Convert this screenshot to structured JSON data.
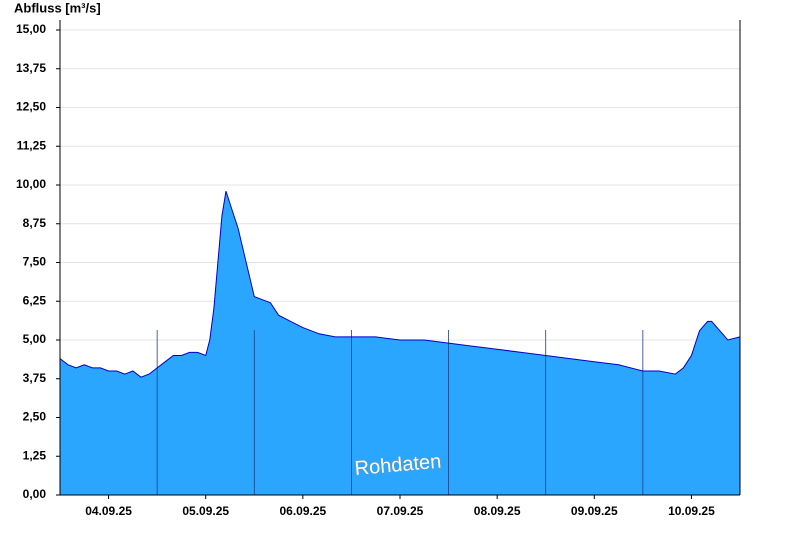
{
  "chart_data": {
    "type": "area",
    "y_label": "Abfluss [m³/s]",
    "annotation": "Rohdaten",
    "x": [
      0,
      2,
      4,
      6,
      8,
      10,
      12,
      14,
      16,
      18,
      20,
      22,
      24,
      26,
      28,
      30,
      32,
      34,
      36,
      37,
      38,
      39,
      40,
      41,
      42,
      43,
      44,
      46,
      48,
      50,
      52,
      54,
      57,
      60,
      64,
      68,
      72,
      78,
      84,
      90,
      96,
      102,
      108,
      114,
      120,
      126,
      132,
      138,
      144,
      148,
      152,
      154,
      156,
      158,
      160,
      161,
      163,
      165,
      168
    ],
    "values": [
      4.4,
      4.2,
      4.1,
      4.2,
      4.1,
      4.1,
      4.0,
      4.0,
      3.9,
      4.0,
      3.8,
      3.9,
      4.1,
      4.3,
      4.5,
      4.5,
      4.6,
      4.6,
      4.5,
      5.0,
      6.0,
      7.5,
      9.0,
      9.8,
      9.4,
      9.0,
      8.6,
      7.5,
      6.4,
      6.3,
      6.2,
      5.8,
      5.6,
      5.4,
      5.2,
      5.1,
      5.1,
      5.1,
      5.0,
      5.0,
      4.9,
      4.8,
      4.7,
      4.6,
      4.5,
      4.4,
      4.3,
      4.2,
      4.0,
      4.0,
      3.9,
      4.1,
      4.5,
      5.3,
      5.6,
      5.6,
      5.3,
      5.0,
      5.1
    ],
    "color": "#2ba6ff",
    "line_color": "#0000c8",
    "xlim": [
      0,
      168
    ],
    "xticks": [
      {
        "value": 12,
        "label": "04.09.25"
      },
      {
        "value": 36,
        "label": "05.09.25"
      },
      {
        "value": 60,
        "label": "06.09.25"
      },
      {
        "value": 84,
        "label": "07.09.25"
      },
      {
        "value": 108,
        "label": "08.09.25"
      },
      {
        "value": 132,
        "label": "09.09.25"
      },
      {
        "value": 156,
        "label": "10.09.25"
      }
    ],
    "ylim": [
      0,
      15
    ],
    "yticks": [
      {
        "value": 0,
        "label": "0,00"
      },
      {
        "value": 1.25,
        "label": "1,25"
      },
      {
        "value": 2.5,
        "label": "2,50"
      },
      {
        "value": 3.75,
        "label": "3,75"
      },
      {
        "value": 5,
        "label": "5,00"
      },
      {
        "value": 6.25,
        "label": "6,25"
      },
      {
        "value": 7.5,
        "label": "7,50"
      },
      {
        "value": 8.75,
        "label": "8,75"
      },
      {
        "value": 10,
        "label": "10,00"
      },
      {
        "value": 11.25,
        "label": "11,25"
      },
      {
        "value": 12.5,
        "label": "12,50"
      },
      {
        "value": 13.75,
        "label": "13,75"
      },
      {
        "value": 15,
        "label": "15,00"
      }
    ],
    "grid": true
  }
}
